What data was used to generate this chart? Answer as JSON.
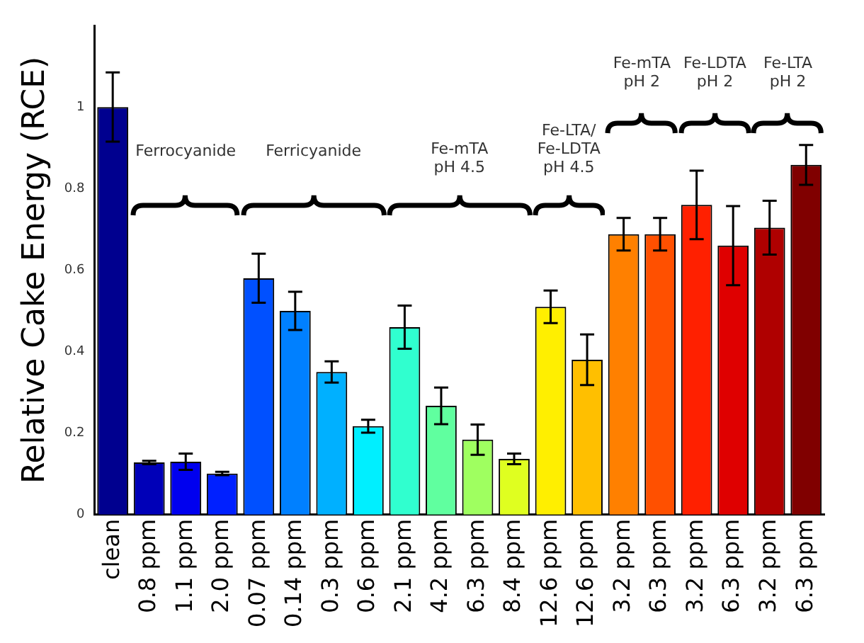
{
  "chart_data": {
    "type": "bar",
    "ylabel": "Relative Cake Energy (RCE)",
    "categories": [
      "clean",
      "0.8 ppm",
      "1.1 ppm",
      "2.0 ppm",
      "0.07 ppm",
      "0.14 ppm",
      "0.3 ppm",
      "0.6 ppm",
      "2.1 ppm",
      "4.2 ppm",
      "6.3 ppm",
      "8.4 ppm",
      "12.6 ppm",
      "12.6 ppm",
      "3.2 ppm",
      "6.3 ppm",
      "3.2 ppm",
      "6.3 ppm",
      "3.2 ppm",
      "6.3 ppm"
    ],
    "values": [
      1.0,
      0.128,
      0.13,
      0.101,
      0.58,
      0.5,
      0.35,
      0.217,
      0.46,
      0.267,
      0.184,
      0.137,
      0.51,
      0.38,
      0.688,
      0.688,
      0.76,
      0.66,
      0.704,
      0.858
    ],
    "errors": [
      0.085,
      0.004,
      0.02,
      0.004,
      0.06,
      0.047,
      0.026,
      0.016,
      0.053,
      0.045,
      0.037,
      0.013,
      0.04,
      0.062,
      0.04,
      0.04,
      0.084,
      0.097,
      0.066,
      0.049
    ],
    "colors": [
      "#00008f",
      "#0000b8",
      "#0000ef",
      "#0020ff",
      "#0050ff",
      "#0080ff",
      "#00b0ff",
      "#00efff",
      "#30ffcf",
      "#60ff9f",
      "#9fff60",
      "#dfff20",
      "#ffef00",
      "#ffbf00",
      "#ff8000",
      "#ff5000",
      "#ff2000",
      "#df0000",
      "#af0000",
      "#800000"
    ],
    "ylim": [
      0,
      1.2
    ],
    "yticks": [
      0,
      0.2,
      0.4,
      0.6,
      0.8,
      1
    ],
    "grid": false,
    "legend": false,
    "annotations": [
      "Ferrocyanide",
      "Ferricyanide",
      "Fe-mTA\npH 4.5",
      "Fe-LTA/\nFe-LDTA\npH 4.5",
      "Fe-mTA\npH 2",
      "Fe-LDTA\npH 2",
      "Fe-LTA\npH 2"
    ]
  }
}
